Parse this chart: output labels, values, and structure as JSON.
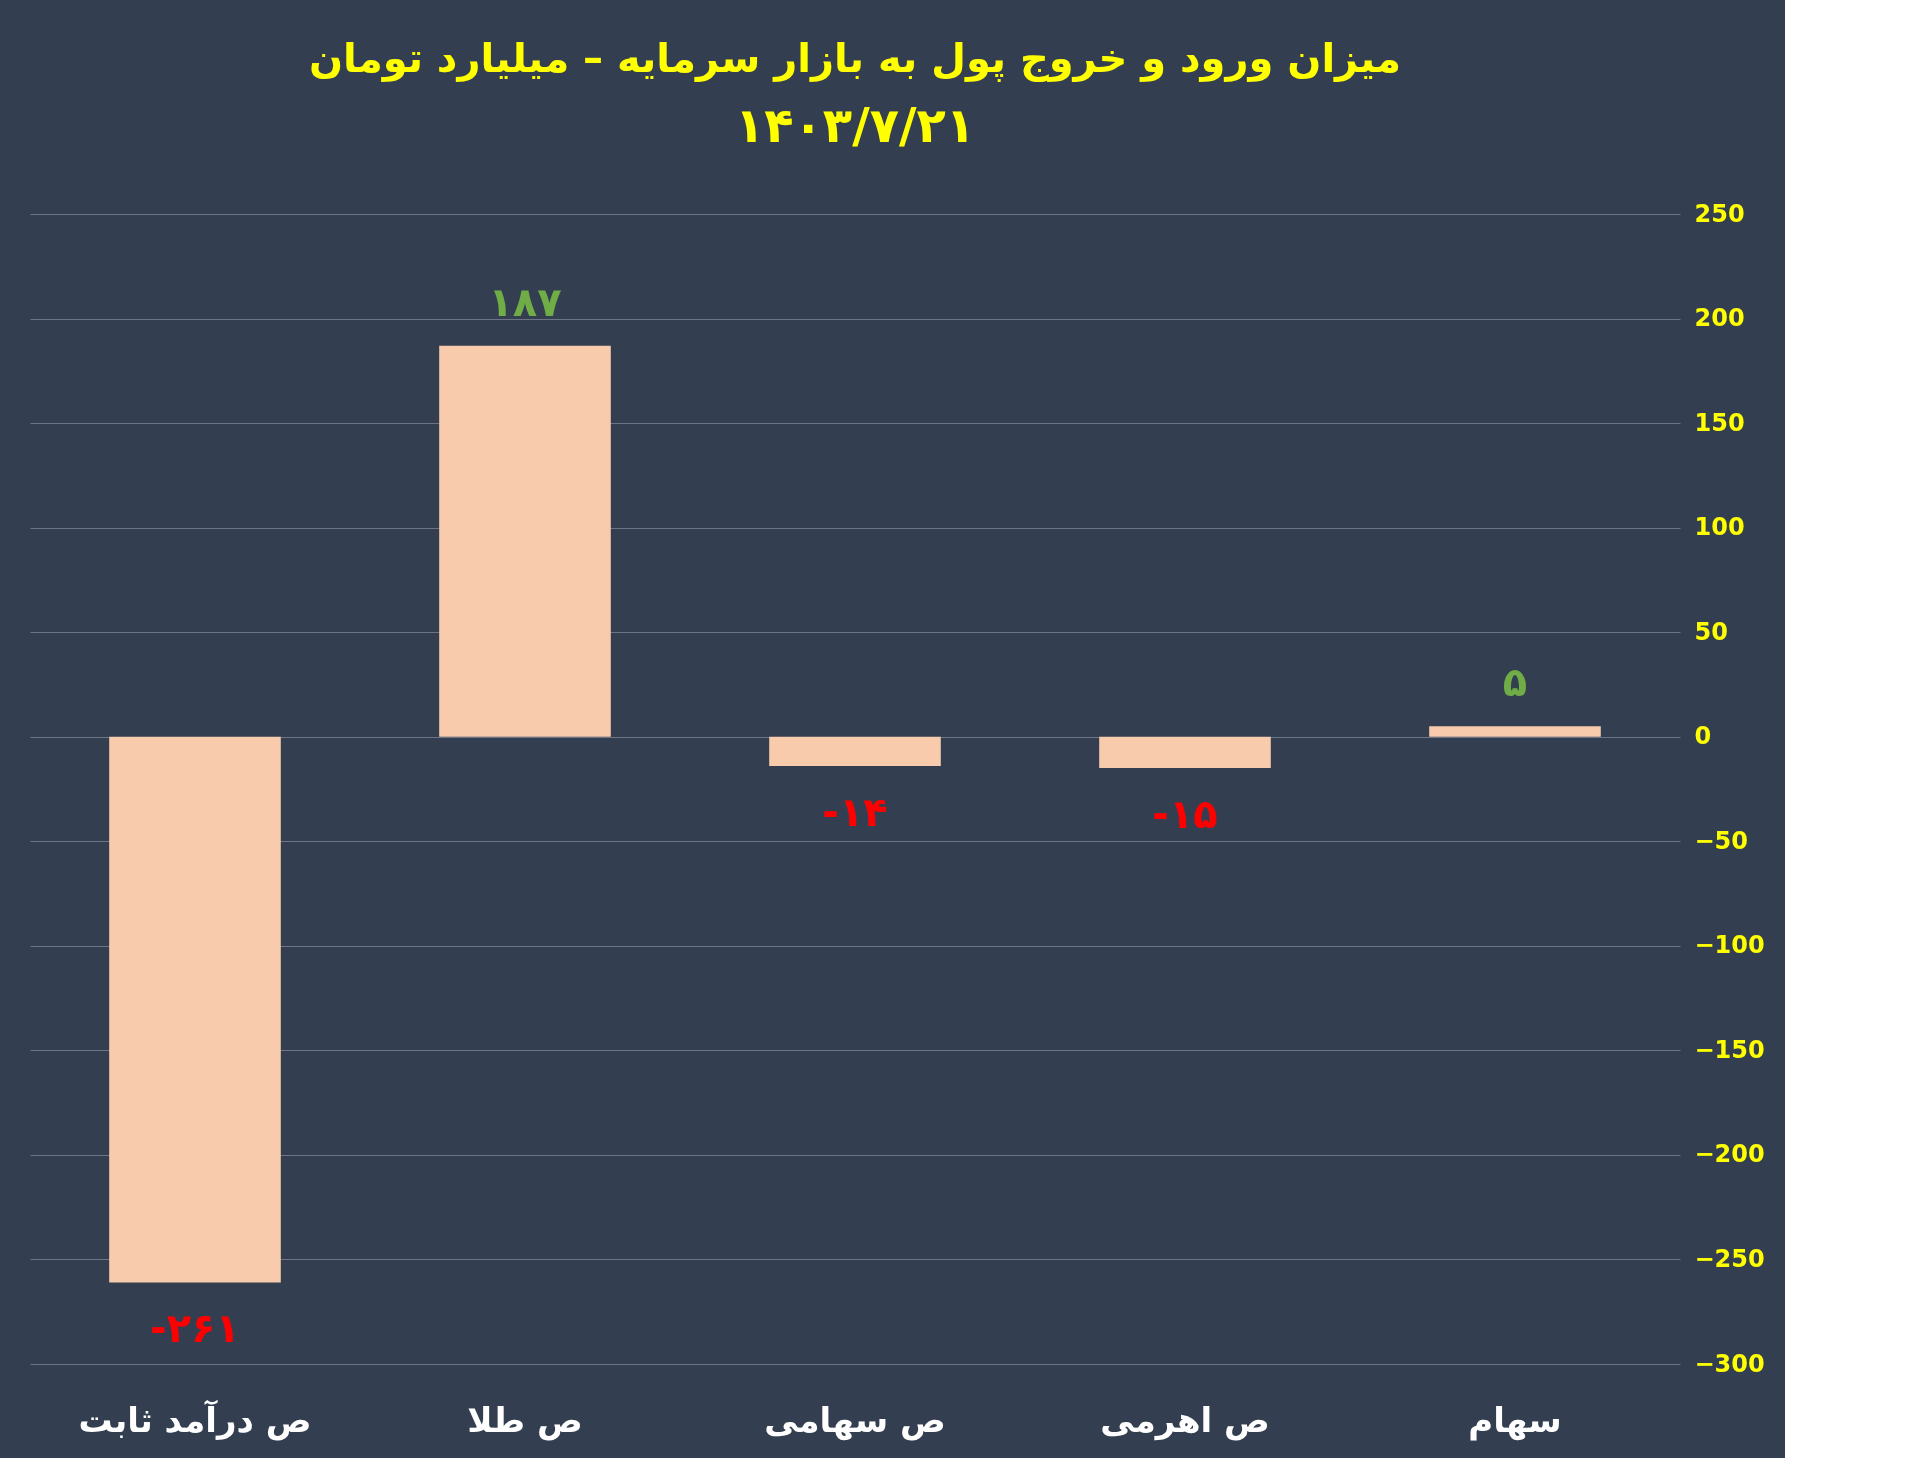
{
  "chart_data": {
    "type": "bar",
    "title": "میزان ورود و خروج پول به بازار سرمایه – میلیارد تومان",
    "subtitle": "۱۴۰۳/۷/۲۱",
    "categories": [
      "ص درآمد ثابت",
      "ص طلا",
      "ص سهامی",
      "ص اهرمی",
      "سهام"
    ],
    "values": [
      -261,
      187,
      -14,
      -15,
      5
    ],
    "value_labels": [
      "-۲۶۱",
      "۱۸۷",
      "-۱۴",
      "-۱۵",
      "۵"
    ],
    "color": "#f8cbad",
    "ylim": [
      -300,
      250
    ],
    "yticks": [
      -300,
      -250,
      -200,
      -150,
      -100,
      -50,
      0,
      50,
      100,
      150,
      200,
      250
    ],
    "grid": "y"
  }
}
